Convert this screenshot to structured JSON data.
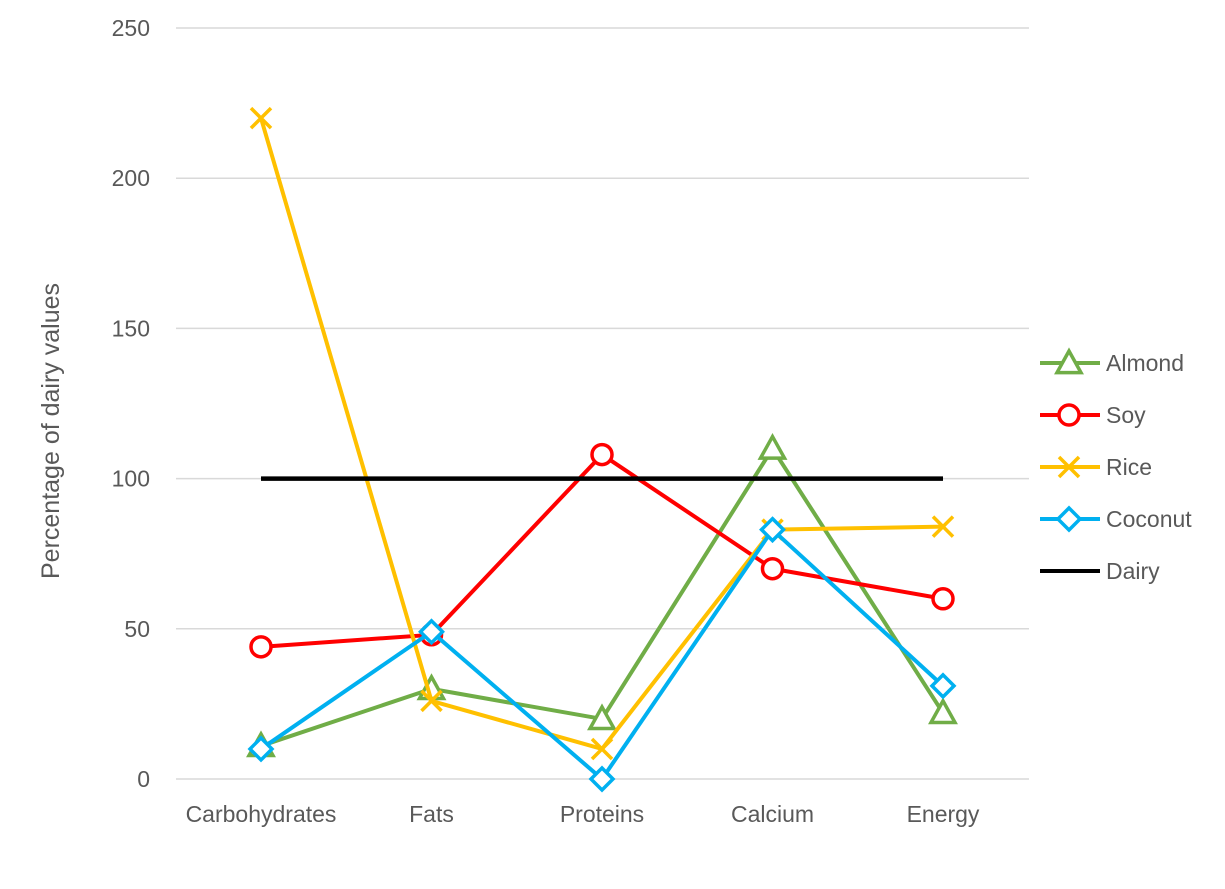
{
  "chart_data": {
    "type": "line",
    "title": "",
    "xlabel": "",
    "ylabel": "Percentage of dairy values",
    "categories": [
      "Carbohydrates",
      "Fats",
      "Proteins",
      "Calcium",
      "Energy"
    ],
    "ylim": [
      0,
      250
    ],
    "yticks": [
      "0",
      "50",
      "100",
      "150",
      "200",
      "250"
    ],
    "grid": true,
    "legend_position": "right",
    "series": [
      {
        "name": "Almond",
        "color": "#70AD47",
        "marker": "triangle",
        "values": [
          11,
          30,
          20,
          110,
          22
        ]
      },
      {
        "name": "Soy",
        "color": "#FF0000",
        "marker": "circle",
        "values": [
          44,
          48,
          108,
          70,
          60
        ]
      },
      {
        "name": "Rice",
        "color": "#FFC000",
        "marker": "x",
        "values": [
          220,
          26,
          10,
          83,
          84
        ]
      },
      {
        "name": "Coconut",
        "color": "#00B0F0",
        "marker": "diamond",
        "values": [
          10,
          49,
          0,
          83,
          31
        ]
      },
      {
        "name": "Dairy",
        "color": "#000000",
        "marker": "none",
        "values": [
          100,
          100,
          100,
          100,
          100
        ]
      }
    ]
  }
}
